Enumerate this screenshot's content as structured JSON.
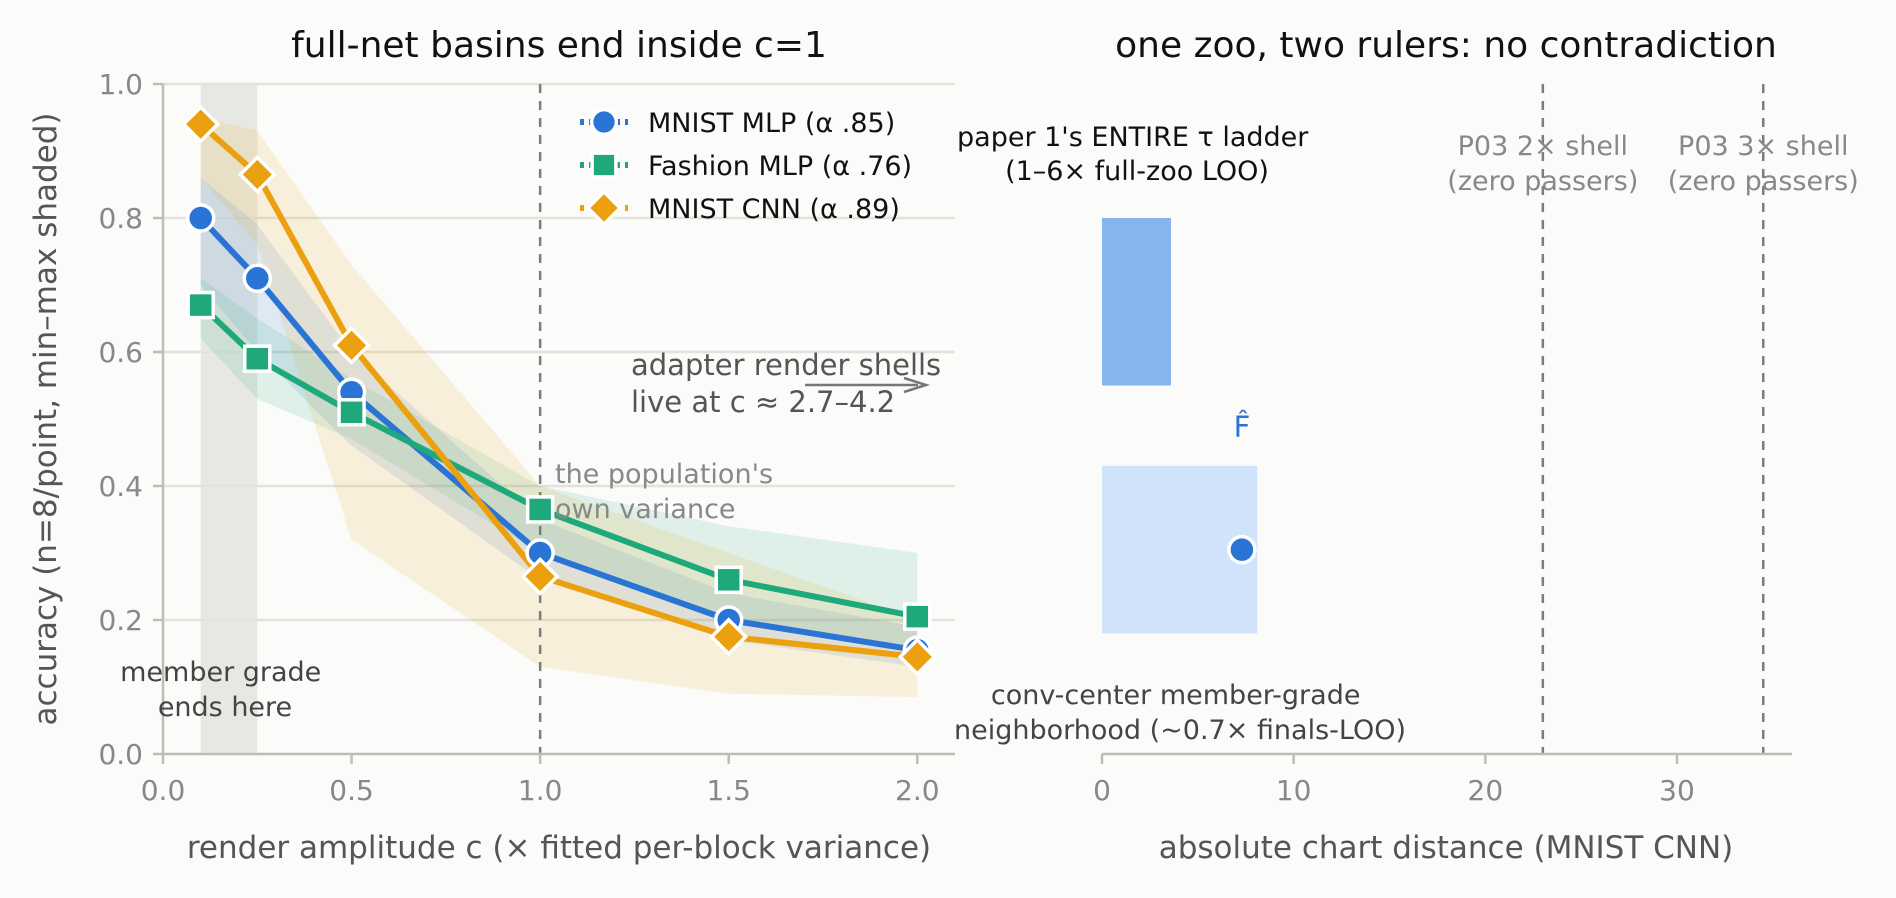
{
  "chart_data": [
    {
      "type": "line",
      "title": "full-net basins end inside c=1",
      "xlabel": "render amplitude c (× fitted per-block variance)",
      "ylabel": "accuracy (n=8/point, min–max shaded)",
      "xlim": [
        0.0,
        2.1
      ],
      "ylim": [
        0.0,
        1.0
      ],
      "xticks": [
        "0.0",
        "0.5",
        "1.0",
        "1.5",
        "2.0"
      ],
      "yticks": [
        "0.0",
        "0.2",
        "0.4",
        "0.6",
        "0.8",
        "1.0"
      ],
      "grid": "horizontal",
      "legend_position": "top-center",
      "x": [
        0.1,
        0.25,
        0.5,
        1.0,
        1.5,
        2.0
      ],
      "series": [
        {
          "name": "MNIST MLP (α .85)",
          "marker": "circle",
          "color": "#2a74d5",
          "values": [
            0.8,
            0.71,
            0.54,
            0.3,
            0.2,
            0.155
          ],
          "min": [
            0.7,
            0.6,
            0.46,
            0.26,
            0.17,
            0.13
          ],
          "max": [
            0.86,
            0.79,
            0.6,
            0.35,
            0.24,
            0.19
          ]
        },
        {
          "name": "Fashion MLP (α .76)",
          "marker": "square",
          "color": "#1fa97a",
          "values": [
            0.67,
            0.59,
            0.51,
            0.365,
            0.26,
            0.205
          ],
          "min": [
            0.62,
            0.53,
            0.47,
            0.3,
            0.2,
            0.15
          ],
          "max": [
            0.71,
            0.65,
            0.56,
            0.4,
            0.34,
            0.3
          ]
        },
        {
          "name": "MNIST CNN (α .89)",
          "marker": "diamond",
          "color": "#eba010",
          "values": [
            0.94,
            0.865,
            0.61,
            0.265,
            0.175,
            0.145
          ],
          "min": [
            0.86,
            0.76,
            0.32,
            0.13,
            0.09,
            0.085
          ],
          "max": [
            0.95,
            0.93,
            0.73,
            0.4,
            0.3,
            0.2
          ]
        }
      ],
      "shaded_band": {
        "x_range": [
          0.1,
          0.25
        ],
        "label": "member grade\nends here"
      },
      "vline": {
        "x": 1.0,
        "label": "the population's\nown variance"
      },
      "arrow_annotation": {
        "label": "adapter render shells\nlive at c ≈ 2.7–4.2"
      }
    },
    {
      "type": "bar",
      "title": "one zoo, two rulers: no contradiction",
      "xlabel": "absolute chart distance (MNIST CNN)",
      "xlim": [
        0,
        36
      ],
      "xticks": [
        "0",
        "10",
        "20",
        "30"
      ],
      "ylim": [
        0.0,
        1.0
      ],
      "grid": "none",
      "spans": [
        {
          "label": "paper 1's ENTIRE τ ladder\n(1–6× full-zoo LOO)",
          "x_range": [
            0,
            3.6
          ],
          "y_range": [
            0.55,
            0.8
          ],
          "color": "#85b4ee"
        },
        {
          "label": "conv-center member-grade\nneighborhood (~0.7× finals-LOO)",
          "x_range": [
            0,
            8.1
          ],
          "y_range": [
            0.18,
            0.43
          ],
          "color": "#d0e3fa"
        }
      ],
      "point": {
        "label": "F̂",
        "x": 7.3,
        "y": 0.305,
        "color": "#2a74d5"
      },
      "vlines": [
        {
          "x": 23.0,
          "label": "P03 2× shell\n(zero passers)"
        },
        {
          "x": 34.5,
          "label": "P03 3× shell\n(zero passers)"
        }
      ]
    }
  ],
  "colors": {
    "background": "#fbfbf9",
    "mnist_mlp": "#2a74d5",
    "fashion_mlp": "#1fa97a",
    "mnist_cnn": "#eba010",
    "axis": "#bdbcb6",
    "grid": "#e3e2dc"
  }
}
